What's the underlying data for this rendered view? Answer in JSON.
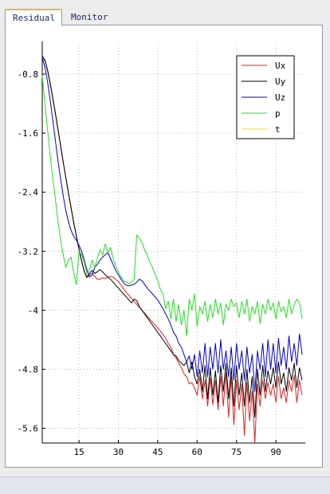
{
  "tabs": [
    {
      "label": "Residual",
      "active": true
    },
    {
      "label": "Monitor",
      "active": false
    }
  ],
  "chart_data": {
    "type": "line",
    "title": "",
    "xlabel": "",
    "ylabel": "",
    "xlim": [
      1,
      100
    ],
    "ylim": [
      -5.8,
      -0.4
    ],
    "xticks": [
      15,
      30,
      45,
      60,
      75,
      90
    ],
    "yticks": [
      -0.8,
      -1.6,
      -2.4,
      -3.2,
      -4,
      -4.8,
      -5.6
    ],
    "grid": true,
    "legend_position": "top-right",
    "series": [
      {
        "name": "Ux",
        "color": "#e02020",
        "x": [
          1,
          2,
          3,
          4,
          5,
          6,
          7,
          8,
          9,
          10,
          11,
          12,
          13,
          14,
          15,
          16,
          17,
          18,
          19,
          20,
          21,
          22,
          23,
          24,
          25,
          26,
          27,
          28,
          29,
          30,
          31,
          32,
          33,
          34,
          35,
          36,
          37,
          38,
          39,
          40,
          41,
          42,
          43,
          44,
          45,
          46,
          47,
          48,
          49,
          50,
          51,
          52,
          53,
          54,
          55,
          56,
          57,
          58,
          59,
          60,
          61,
          62,
          63,
          64,
          65,
          66,
          67,
          68,
          69,
          70,
          71,
          72,
          73,
          74,
          75,
          76,
          77,
          78,
          79,
          80,
          81,
          82,
          83,
          84,
          85,
          86,
          87,
          88,
          89,
          90,
          91,
          92,
          93,
          94,
          95,
          96,
          97,
          98,
          99,
          100
        ],
        "values": [
          -0.56,
          -0.62,
          -0.75,
          -0.93,
          -1.13,
          -1.34,
          -1.56,
          -1.78,
          -2.0,
          -2.21,
          -2.42,
          -2.62,
          -2.82,
          -3.0,
          -3.18,
          -3.34,
          -3.48,
          -3.56,
          -3.52,
          -3.5,
          -3.54,
          -3.58,
          -3.58,
          -3.56,
          -3.57,
          -3.55,
          -3.54,
          -3.55,
          -3.58,
          -3.61,
          -3.66,
          -3.71,
          -3.76,
          -3.8,
          -3.84,
          -3.88,
          -3.92,
          -3.96,
          -4.0,
          -4.04,
          -4.08,
          -4.12,
          -4.16,
          -4.2,
          -4.24,
          -4.28,
          -4.33,
          -4.38,
          -4.45,
          -4.5,
          -4.6,
          -4.65,
          -4.72,
          -4.78,
          -4.86,
          -4.9,
          -5.0,
          -4.98,
          -5.05,
          -5.15,
          -4.9,
          -5.2,
          -4.95,
          -5.3,
          -4.92,
          -5.28,
          -4.95,
          -5.35,
          -4.9,
          -5.3,
          -4.85,
          -5.45,
          -4.9,
          -5.55,
          -4.95,
          -5.35,
          -5.0,
          -5.7,
          -4.98,
          -5.5,
          -5.1,
          -5.8,
          -5.0,
          -5.3,
          -4.95,
          -5.2,
          -4.98,
          -5.15,
          -5.0,
          -5.25,
          -4.9,
          -5.2,
          -5.05,
          -5.25,
          -4.95,
          -5.1,
          -4.88,
          -5.25,
          -4.95,
          -5.15
        ]
      },
      {
        "name": "Uy",
        "color": "#000000",
        "x": [
          1,
          2,
          3,
          4,
          5,
          6,
          7,
          8,
          9,
          10,
          11,
          12,
          13,
          14,
          15,
          16,
          17,
          18,
          19,
          20,
          21,
          22,
          23,
          24,
          25,
          26,
          27,
          28,
          29,
          30,
          31,
          32,
          33,
          34,
          35,
          36,
          37,
          38,
          39,
          40,
          41,
          42,
          43,
          44,
          45,
          46,
          47,
          48,
          49,
          50,
          51,
          52,
          53,
          54,
          55,
          56,
          57,
          58,
          59,
          60,
          61,
          62,
          63,
          64,
          65,
          66,
          67,
          68,
          69,
          70,
          71,
          72,
          73,
          74,
          75,
          76,
          77,
          78,
          79,
          80,
          81,
          82,
          83,
          84,
          85,
          86,
          87,
          88,
          89,
          90,
          91,
          92,
          93,
          94,
          95,
          96,
          97,
          98,
          99,
          100
        ],
        "values": [
          -0.55,
          -0.61,
          -0.74,
          -0.92,
          -1.12,
          -1.33,
          -1.55,
          -1.77,
          -1.99,
          -2.2,
          -2.41,
          -2.61,
          -2.81,
          -2.99,
          -3.17,
          -3.33,
          -3.47,
          -3.55,
          -3.5,
          -3.46,
          -3.5,
          -3.48,
          -3.45,
          -3.48,
          -3.52,
          -3.55,
          -3.58,
          -3.62,
          -3.66,
          -3.7,
          -3.74,
          -3.78,
          -3.82,
          -3.86,
          -3.9,
          -3.85,
          -3.87,
          -3.95,
          -4.0,
          -4.05,
          -4.1,
          -4.15,
          -4.2,
          -4.25,
          -4.3,
          -4.35,
          -4.4,
          -4.45,
          -4.5,
          -4.55,
          -4.6,
          -4.62,
          -4.68,
          -4.72,
          -4.75,
          -4.7,
          -4.85,
          -4.7,
          -4.9,
          -5.0,
          -4.8,
          -5.1,
          -4.75,
          -5.2,
          -4.78,
          -5.15,
          -4.82,
          -5.25,
          -4.75,
          -5.1,
          -4.72,
          -5.2,
          -4.78,
          -5.3,
          -4.75,
          -5.15,
          -4.85,
          -5.3,
          -4.8,
          -5.25,
          -4.9,
          -5.45,
          -4.8,
          -5.15,
          -4.75,
          -5.1,
          -4.82,
          -5.0,
          -4.78,
          -5.05,
          -4.7,
          -5.0,
          -4.85,
          -5.1,
          -4.78,
          -4.95,
          -4.72,
          -5.05,
          -4.78,
          -4.95
        ]
      },
      {
        "name": "Uz",
        "color": "#0000d0",
        "x": [
          1,
          2,
          3,
          4,
          5,
          6,
          7,
          8,
          9,
          10,
          11,
          12,
          13,
          14,
          15,
          16,
          17,
          18,
          19,
          20,
          21,
          22,
          23,
          24,
          25,
          26,
          27,
          28,
          29,
          30,
          31,
          32,
          33,
          34,
          35,
          36,
          37,
          38,
          39,
          40,
          41,
          42,
          43,
          44,
          45,
          46,
          47,
          48,
          49,
          50,
          51,
          52,
          53,
          54,
          55,
          56,
          57,
          58,
          59,
          60,
          61,
          62,
          63,
          64,
          65,
          66,
          67,
          68,
          69,
          70,
          71,
          72,
          73,
          74,
          75,
          76,
          77,
          78,
          79,
          80,
          81,
          82,
          83,
          84,
          85,
          86,
          87,
          88,
          89,
          90,
          91,
          92,
          93,
          94,
          95,
          96,
          97,
          98,
          99,
          100
        ],
        "values": [
          -0.58,
          -0.7,
          -0.9,
          -1.15,
          -1.42,
          -1.7,
          -1.98,
          -2.22,
          -2.45,
          -2.65,
          -2.8,
          -2.92,
          -3.0,
          -3.05,
          -3.12,
          -3.2,
          -3.32,
          -3.45,
          -3.55,
          -3.52,
          -3.42,
          -3.38,
          -3.32,
          -3.28,
          -3.25,
          -3.22,
          -3.3,
          -3.38,
          -3.46,
          -3.52,
          -3.58,
          -3.63,
          -3.66,
          -3.67,
          -3.66,
          -3.65,
          -3.62,
          -3.58,
          -3.6,
          -3.65,
          -3.7,
          -3.74,
          -3.78,
          -3.82,
          -3.86,
          -3.92,
          -3.98,
          -4.05,
          -4.12,
          -4.2,
          -4.3,
          -4.35,
          -4.45,
          -4.5,
          -4.6,
          -4.7,
          -4.62,
          -4.8,
          -4.6,
          -4.9,
          -4.55,
          -4.85,
          -4.45,
          -4.9,
          -4.5,
          -4.8,
          -4.45,
          -4.85,
          -4.4,
          -4.8,
          -4.55,
          -4.9,
          -4.5,
          -4.95,
          -4.45,
          -4.8,
          -4.55,
          -4.95,
          -4.5,
          -4.85,
          -4.6,
          -5.1,
          -4.55,
          -4.8,
          -4.45,
          -4.9,
          -4.4,
          -4.8,
          -4.45,
          -4.85,
          -4.38,
          -4.75,
          -4.5,
          -4.8,
          -4.35,
          -4.7,
          -4.45,
          -4.75,
          -4.32,
          -4.6
        ]
      },
      {
        "name": "p",
        "color": "#20e020",
        "x": [
          1,
          2,
          3,
          4,
          5,
          6,
          7,
          8,
          9,
          10,
          11,
          12,
          13,
          14,
          15,
          16,
          17,
          18,
          19,
          20,
          21,
          22,
          23,
          24,
          25,
          26,
          27,
          28,
          29,
          30,
          31,
          32,
          33,
          34,
          35,
          36,
          37,
          38,
          39,
          40,
          41,
          42,
          43,
          44,
          45,
          46,
          47,
          48,
          49,
          50,
          51,
          52,
          53,
          54,
          55,
          56,
          57,
          58,
          59,
          60,
          61,
          62,
          63,
          64,
          65,
          66,
          67,
          68,
          69,
          70,
          71,
          72,
          73,
          74,
          75,
          76,
          77,
          78,
          79,
          80,
          81,
          82,
          83,
          84,
          85,
          86,
          87,
          88,
          89,
          90,
          91,
          92,
          93,
          94,
          95,
          96,
          97,
          98,
          99,
          100
        ],
        "values": [
          -0.82,
          -1.2,
          -1.55,
          -1.9,
          -2.2,
          -2.5,
          -2.8,
          -3.05,
          -3.25,
          -3.42,
          -3.32,
          -3.28,
          -3.5,
          -3.65,
          -3.2,
          -3.25,
          -3.35,
          -3.5,
          -3.45,
          -3.32,
          -3.42,
          -3.3,
          -3.18,
          -3.25,
          -3.1,
          -3.22,
          -3.15,
          -3.3,
          -3.4,
          -3.48,
          -3.55,
          -3.6,
          -3.62,
          -3.64,
          -3.62,
          -3.58,
          -2.98,
          -3.02,
          -3.08,
          -3.18,
          -3.25,
          -3.35,
          -3.42,
          -3.52,
          -3.6,
          -3.72,
          -3.78,
          -3.98,
          -3.88,
          -4.12,
          -3.85,
          -4.15,
          -3.92,
          -4.2,
          -4.0,
          -4.35,
          -3.85,
          -4.0,
          -3.78,
          -4.22,
          -3.95,
          -4.05,
          -3.88,
          -4.15,
          -3.92,
          -4.1,
          -3.85,
          -4.05,
          -3.9,
          -4.2,
          -3.92,
          -4.0,
          -3.85,
          -3.95,
          -3.9,
          -4.1,
          -3.88,
          -4.05,
          -3.85,
          -4.15,
          -3.95,
          -4.05,
          -3.88,
          -4.18,
          -3.92,
          -4.05,
          -3.85,
          -4.0,
          -3.9,
          -4.12,
          -3.88,
          -4.02,
          -3.95,
          -4.1,
          -3.85,
          -4.05,
          -3.92,
          -3.85,
          -3.9,
          -4.12
        ]
      },
      {
        "name": "t",
        "color": "#f0e000",
        "x": [],
        "values": []
      }
    ]
  }
}
